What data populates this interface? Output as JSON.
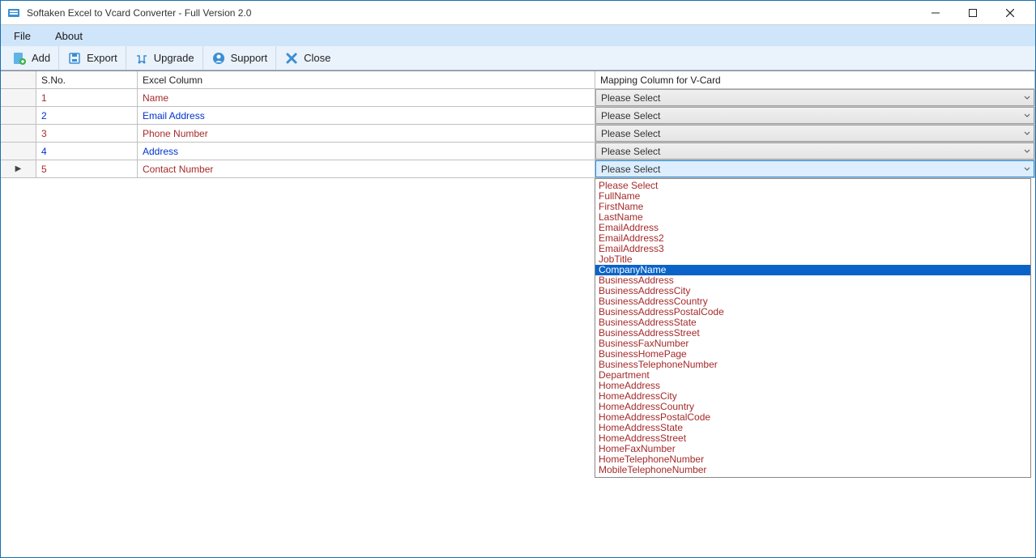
{
  "window": {
    "title": "Softaken Excel to Vcard Converter - Full Version 2.0"
  },
  "menu": {
    "file": "File",
    "about": "About"
  },
  "toolbar": {
    "add": "Add",
    "export": "Export",
    "upgrade": "Upgrade",
    "support": "Support",
    "close": "Close"
  },
  "grid": {
    "headers": {
      "sno": "S.No.",
      "excel": "Excel Column",
      "mapping": "Mapping Column for V-Card"
    },
    "rows": [
      {
        "sno": "1",
        "excel": "Name",
        "color": "red",
        "select": "Please Select"
      },
      {
        "sno": "2",
        "excel": "Email Address",
        "color": "blue",
        "select": "Please Select"
      },
      {
        "sno": "3",
        "excel": "Phone Number",
        "color": "red",
        "select": "Please Select"
      },
      {
        "sno": "4",
        "excel": "Address",
        "color": "blue",
        "select": "Please Select"
      },
      {
        "sno": "5",
        "excel": "Contact Number",
        "color": "red",
        "select": "Please Select",
        "active": true
      }
    ]
  },
  "dropdown": {
    "options": [
      "Please Select",
      "FullName",
      "FirstName",
      "LastName",
      "EmailAddress",
      "EmailAddress2",
      "EmailAddress3",
      "JobTitle",
      "CompanyName",
      "BusinessAddress",
      "BusinessAddressCity",
      "BusinessAddressCountry",
      "BusinessAddressPostalCode",
      "BusinessAddressState",
      "BusinessAddressStreet",
      "BusinessFaxNumber",
      "BusinessHomePage",
      "BusinessTelephoneNumber",
      "Department",
      "HomeAddress",
      "HomeAddressCity",
      "HomeAddressCountry",
      "HomeAddressPostalCode",
      "HomeAddressState",
      "HomeAddressStreet",
      "HomeFaxNumber",
      "HomeTelephoneNumber",
      "MobileTelephoneNumber"
    ],
    "selected_index": 8
  },
  "colors": {
    "titlebar_bg": "#ffffff",
    "menubar_bg": "#cfe5fa",
    "toolbar_bg": "#eaf2fb",
    "row_alt_red": "#a52a2a",
    "row_alt_blue": "#0033cc",
    "selection_bg": "#0a64c8",
    "combo_active_bg": "#dceeff"
  }
}
